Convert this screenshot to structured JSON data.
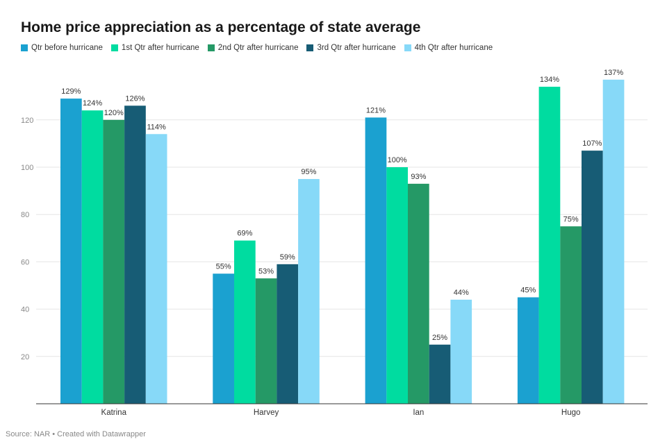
{
  "chart_data": {
    "type": "bar",
    "title": "Home price appreciation as a percentage of state average",
    "categories": [
      "Katrina",
      "Harvey",
      "Ian",
      "Hugo"
    ],
    "series": [
      {
        "name": "Qtr before hurricane",
        "color": "#1ba1d0",
        "values": [
          129,
          55,
          121,
          45
        ]
      },
      {
        "name": "1st Qtr after hurricane",
        "color": "#00dca0",
        "values": [
          124,
          69,
          100,
          134
        ]
      },
      {
        "name": "2nd Qtr after hurricane",
        "color": "#259966",
        "values": [
          120,
          53,
          93,
          75
        ]
      },
      {
        "name": "3rd Qtr after hurricane",
        "color": "#175c75",
        "values": [
          126,
          59,
          25,
          107
        ]
      },
      {
        "name": "4th Qtr after hurricane",
        "color": "#87d9f8",
        "values": [
          114,
          95,
          44,
          137
        ]
      }
    ],
    "value_suffix": "%",
    "ylim": [
      0,
      140
    ],
    "yticks": [
      20,
      40,
      60,
      80,
      100,
      120
    ],
    "grid": true,
    "legend_position": "top-left"
  },
  "footer": {
    "source": "Source: NAR • Created with Datawrapper"
  }
}
